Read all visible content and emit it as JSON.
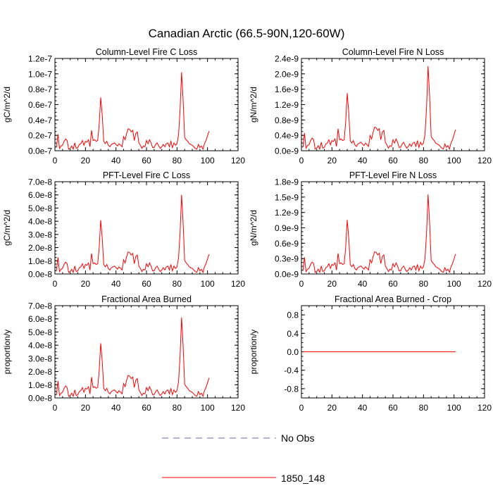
{
  "title": "Canadian Arctic (66.5-90N,120-60W)",
  "legend": {
    "position": "bottom-center",
    "entries": [
      {
        "label": "No Obs",
        "style": "dashed",
        "color": "#6a6ab0"
      },
      {
        "label": "1850_148",
        "style": "solid",
        "color": "#ff0000"
      }
    ]
  },
  "chart_data": [
    {
      "type": "line",
      "title": "Column-Level Fire C Loss",
      "ylabel": "gC/m^2/d",
      "xlim": [
        0,
        120
      ],
      "ylim": [
        0,
        1.2e-07
      ],
      "xticks": [
        0,
        20,
        40,
        60,
        80,
        100,
        120
      ],
      "yticks": [
        {
          "v": 0,
          "label": "0.0e-7"
        },
        {
          "v": 2e-08,
          "label": "0.2e-7"
        },
        {
          "v": 4e-08,
          "label": "0.4e-7"
        },
        {
          "v": 6e-08,
          "label": "0.6e-7"
        },
        {
          "v": 8e-08,
          "label": "0.8e-7"
        },
        {
          "v": 1e-07,
          "label": "1.0e-7"
        },
        {
          "v": 1.2e-07,
          "label": "1.2e-7"
        }
      ],
      "series": [
        {
          "color": "#ff0000",
          "scale": 1.02e-07
        }
      ]
    },
    {
      "type": "line",
      "title": "Column-Level Fire N Loss",
      "ylabel": "gN/m^2/d",
      "xlim": [
        0,
        120
      ],
      "ylim": [
        0,
        2.4e-09
      ],
      "xticks": [
        0,
        20,
        40,
        60,
        80,
        100,
        120
      ],
      "yticks": [
        {
          "v": 0,
          "label": "0.0e-9"
        },
        {
          "v": 4e-10,
          "label": "0.4e-9"
        },
        {
          "v": 8e-10,
          "label": "0.8e-9"
        },
        {
          "v": 1.2e-09,
          "label": "1.2e-9"
        },
        {
          "v": 1.6e-09,
          "label": "1.6e-9"
        },
        {
          "v": 2e-09,
          "label": "2.0e-9"
        },
        {
          "v": 2.4e-09,
          "label": "2.4e-9"
        }
      ],
      "series": [
        {
          "color": "#ff0000",
          "scale": 2.2e-09
        }
      ]
    },
    {
      "type": "line",
      "title": "PFT-Level Fire C Loss",
      "ylabel": "gC/m^2/d",
      "xlim": [
        0,
        120
      ],
      "ylim": [
        0,
        7e-08
      ],
      "xticks": [
        0,
        20,
        40,
        60,
        80,
        100,
        120
      ],
      "yticks": [
        {
          "v": 0,
          "label": "0.0e-8"
        },
        {
          "v": 1e-08,
          "label": "1.0e-8"
        },
        {
          "v": 2e-08,
          "label": "2.0e-8"
        },
        {
          "v": 3e-08,
          "label": "3.0e-8"
        },
        {
          "v": 4e-08,
          "label": "4.0e-8"
        },
        {
          "v": 5e-08,
          "label": "5.0e-8"
        },
        {
          "v": 6e-08,
          "label": "6.0e-8"
        },
        {
          "v": 7e-08,
          "label": "7.0e-8"
        }
      ],
      "series": [
        {
          "color": "#ff0000",
          "scale": 6e-08
        }
      ]
    },
    {
      "type": "line",
      "title": "PFT-Level Fire N Loss",
      "ylabel": "gN/m^2/d",
      "xlim": [
        0,
        120
      ],
      "ylim": [
        0,
        1.8e-09
      ],
      "xticks": [
        0,
        20,
        40,
        60,
        80,
        100,
        120
      ],
      "yticks": [
        {
          "v": 0,
          "label": "0.0e-9"
        },
        {
          "v": 3e-10,
          "label": "0.3e-9"
        },
        {
          "v": 6e-10,
          "label": "0.6e-9"
        },
        {
          "v": 9e-10,
          "label": "0.9e-9"
        },
        {
          "v": 1.2e-09,
          "label": "1.2e-9"
        },
        {
          "v": 1.5e-09,
          "label": "1.5e-9"
        },
        {
          "v": 1.8e-09,
          "label": "1.8e-9"
        }
      ],
      "series": [
        {
          "color": "#ff0000",
          "scale": 1.55e-09
        }
      ]
    },
    {
      "type": "line",
      "title": "Fractional Area Burned",
      "ylabel": "proportion/y",
      "xlim": [
        0,
        120
      ],
      "ylim": [
        0,
        7e-08
      ],
      "xticks": [
        0,
        20,
        40,
        60,
        80,
        100,
        120
      ],
      "yticks": [
        {
          "v": 0,
          "label": "0.0e-8"
        },
        {
          "v": 1e-08,
          "label": "1.0e-8"
        },
        {
          "v": 2e-08,
          "label": "2.0e-8"
        },
        {
          "v": 3e-08,
          "label": "3.0e-8"
        },
        {
          "v": 4e-08,
          "label": "4.0e-8"
        },
        {
          "v": 5e-08,
          "label": "5.0e-8"
        },
        {
          "v": 6e-08,
          "label": "6.0e-8"
        },
        {
          "v": 7e-08,
          "label": "7.0e-8"
        }
      ],
      "series": [
        {
          "color": "#ff0000",
          "scale": 6.1e-08
        }
      ]
    },
    {
      "type": "line",
      "title": "Fractional Area Burned - Crop",
      "ylabel": "proportion/y",
      "xlim": [
        0,
        120
      ],
      "ylim": [
        -1.0,
        1.0
      ],
      "xticks": [
        0,
        20,
        40,
        60,
        80,
        100,
        120
      ],
      "yticks": [
        {
          "v": -0.8,
          "label": "-0.8"
        },
        {
          "v": -0.4,
          "label": "-0.4"
        },
        {
          "v": 0,
          "label": "0.0"
        },
        {
          "v": 0.4,
          "label": "0.4"
        },
        {
          "v": 0.8,
          "label": "0.8"
        }
      ],
      "series": [
        {
          "color": "#ff0000",
          "constant": 0
        }
      ]
    }
  ],
  "x": [
    1,
    2,
    3,
    4,
    5,
    6,
    7,
    8,
    9,
    10,
    11,
    12,
    13,
    14,
    15,
    16,
    17,
    18,
    19,
    20,
    21,
    22,
    23,
    24,
    25,
    26,
    27,
    28,
    29,
    30,
    31,
    32,
    33,
    34,
    35,
    36,
    37,
    38,
    39,
    40,
    41,
    42,
    43,
    44,
    45,
    46,
    47,
    48,
    49,
    50,
    51,
    52,
    53,
    54,
    55,
    56,
    57,
    58,
    59,
    60,
    61,
    62,
    63,
    64,
    65,
    66,
    67,
    68,
    69,
    70,
    71,
    72,
    73,
    74,
    75,
    76,
    77,
    78,
    79,
    80,
    81,
    82,
    83,
    84,
    85,
    86,
    87,
    88,
    89,
    90,
    91,
    92,
    93,
    94,
    95,
    96,
    97,
    98,
    99,
    100,
    101
  ],
  "shape": [
    0.04,
    0.21,
    0.03,
    0.06,
    0.07,
    0.12,
    0.15,
    0.13,
    0.02,
    0.03,
    0.06,
    0.02,
    0.1,
    0.03,
    0.04,
    0.08,
    0.09,
    0.13,
    0.07,
    0.12,
    0.11,
    0.14,
    0.05,
    0.26,
    0.13,
    0.14,
    0.12,
    0.13,
    0.33,
    0.68,
    0.45,
    0.12,
    0.09,
    0.12,
    0.07,
    0.05,
    0.08,
    0.09,
    0.1,
    0.08,
    0.06,
    0.09,
    0.07,
    0.05,
    0.18,
    0.14,
    0.22,
    0.28,
    0.27,
    0.24,
    0.26,
    0.13,
    0.22,
    0.24,
    0.1,
    0.07,
    0.03,
    0.06,
    0.05,
    0.13,
    0.09,
    0.14,
    0.1,
    0.04,
    0.04,
    0.08,
    0.1,
    0.06,
    0.03,
    0.05,
    0.08,
    0.05,
    0.09,
    0.1,
    0.05,
    0.12,
    0.04,
    0.1,
    0.07,
    0.09,
    0.2,
    0.52,
    1.0,
    0.65,
    0.17,
    0.14,
    0.12,
    0.09,
    0.08,
    0.07,
    0.05,
    0.03,
    0.02,
    0.08,
    0.04,
    0.06,
    0.02,
    0.09,
    0.13,
    0.19,
    0.25
  ]
}
